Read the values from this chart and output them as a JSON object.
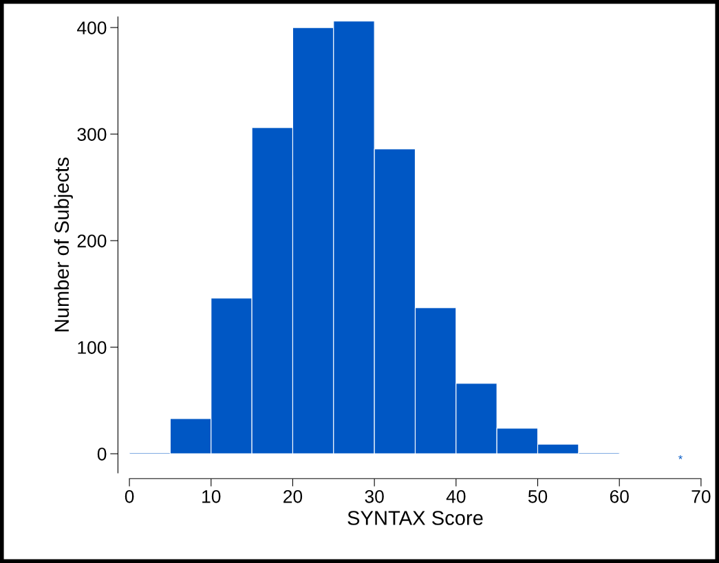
{
  "chart_data": {
    "type": "histogram",
    "xlabel": "SYNTAX Score",
    "ylabel": "Number of Subjects",
    "bins": [
      0,
      5,
      10,
      15,
      20,
      25,
      30,
      35,
      40,
      45,
      50,
      55,
      60
    ],
    "values": [
      1,
      33,
      146,
      306,
      400,
      406,
      286,
      137,
      66,
      24,
      9,
      1
    ],
    "color": "#0057c4",
    "annotations": [
      "*"
    ],
    "xlim": [
      0,
      70
    ],
    "ylim": [
      -18,
      410
    ],
    "xticks": [
      0,
      10,
      20,
      30,
      40,
      50,
      60,
      70
    ],
    "yticks": [
      0,
      100,
      200,
      300,
      400
    ],
    "grid": false
  }
}
